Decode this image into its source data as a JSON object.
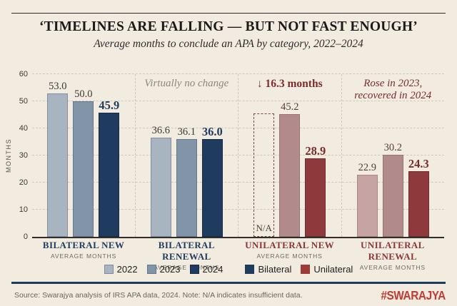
{
  "header": {
    "title": "‘TIMELINES ARE FALLING — BUT NOT FAST ENOUGH’",
    "subtitle": "Average months to conclude an APA by category, 2022–2024"
  },
  "chart_data": {
    "type": "bar",
    "title": "‘TIMELINES ARE FALLING — BUT NOT FAST ENOUGH’",
    "subtitle": "Average months to conclude an APA by category, 2022–2024",
    "ylabel": "MONTHS",
    "ylim": [
      0,
      60
    ],
    "yticks": [
      0,
      10,
      20,
      30,
      40,
      50,
      60
    ],
    "grid": "horizontal-dashed",
    "legend_position": "bottom",
    "series_years": [
      "2022",
      "2023",
      "2024"
    ],
    "groups": [
      {
        "label": "BILATERAL NEW",
        "sublabel": "AVERAGE MONTHS",
        "family": "bilateral",
        "annotation": "",
        "annotation_style": "",
        "values": [
          53.0,
          50.0,
          45.9
        ]
      },
      {
        "label": "BILATERAL RENEWAL",
        "sublabel": "AVERAGE MONTHS",
        "family": "bilateral",
        "annotation": "Virtually no change",
        "annotation_style": "muted",
        "values": [
          36.6,
          36.1,
          36.0
        ]
      },
      {
        "label": "UNILATERAL NEW",
        "sublabel": "AVERAGE MONTHS",
        "family": "unilateral",
        "annotation": "↓ 16.3 months",
        "annotation_style": "bold",
        "values": [
          null,
          45.2,
          28.9
        ],
        "na_label": "N/A",
        "na_visual_height_months": 45.5
      },
      {
        "label": "UNILATERAL RENEWAL",
        "sublabel": "AVERAGE MONTHS",
        "family": "unilateral",
        "annotation": "Rose in 2023,\nrecovered in 2024",
        "annotation_style": "italic",
        "values": [
          22.9,
          30.2,
          24.3
        ]
      }
    ]
  },
  "colors": {
    "background": "#f1ebe0",
    "bilateral": {
      "fills": [
        "#a9b4c1",
        "#8294a8",
        "#1f3b5e"
      ],
      "borders": [
        "#8191a2",
        "#64788d",
        "#16294a"
      ],
      "label_regular": "#3a3a37",
      "label_bold": "#1f3b5e",
      "group_label": "#1f3b5e"
    },
    "unilateral": {
      "fills": [
        "#c6a4a3",
        "#b18a8b",
        "#8e393b"
      ],
      "borders": [
        "#a98786",
        "#997273",
        "#6f2b2d"
      ],
      "label_regular": "#553f3b",
      "label_bold": "#7c2c2c",
      "group_label": "#8c3638",
      "na_border": "#7d463e"
    },
    "accent_red": "#c23b34",
    "navy_rule": "#1f3b5e"
  },
  "legend": [
    {
      "label": "2022",
      "color": "#a9b4c1",
      "border": "#7d8da0",
      "gap_before": false
    },
    {
      "label": "2023",
      "color": "#8294a8",
      "border": "#64788d",
      "gap_before": false
    },
    {
      "label": "2024",
      "color": "#1f3b5e",
      "border": "#16294a",
      "gap_before": false
    },
    {
      "label": "Bilateral",
      "color": "#1f3b5e",
      "border": "#1f3b5e",
      "gap_before": true
    },
    {
      "label": "Unilateral",
      "color": "#9e3b38",
      "border": "#9e3b38",
      "gap_before": false
    }
  ],
  "footer": {
    "source": "Source: Swarajya analysis of IRS APA data, 2024. Note: N/A indicates insufficient data.",
    "brand": "#SWARAJYA"
  }
}
